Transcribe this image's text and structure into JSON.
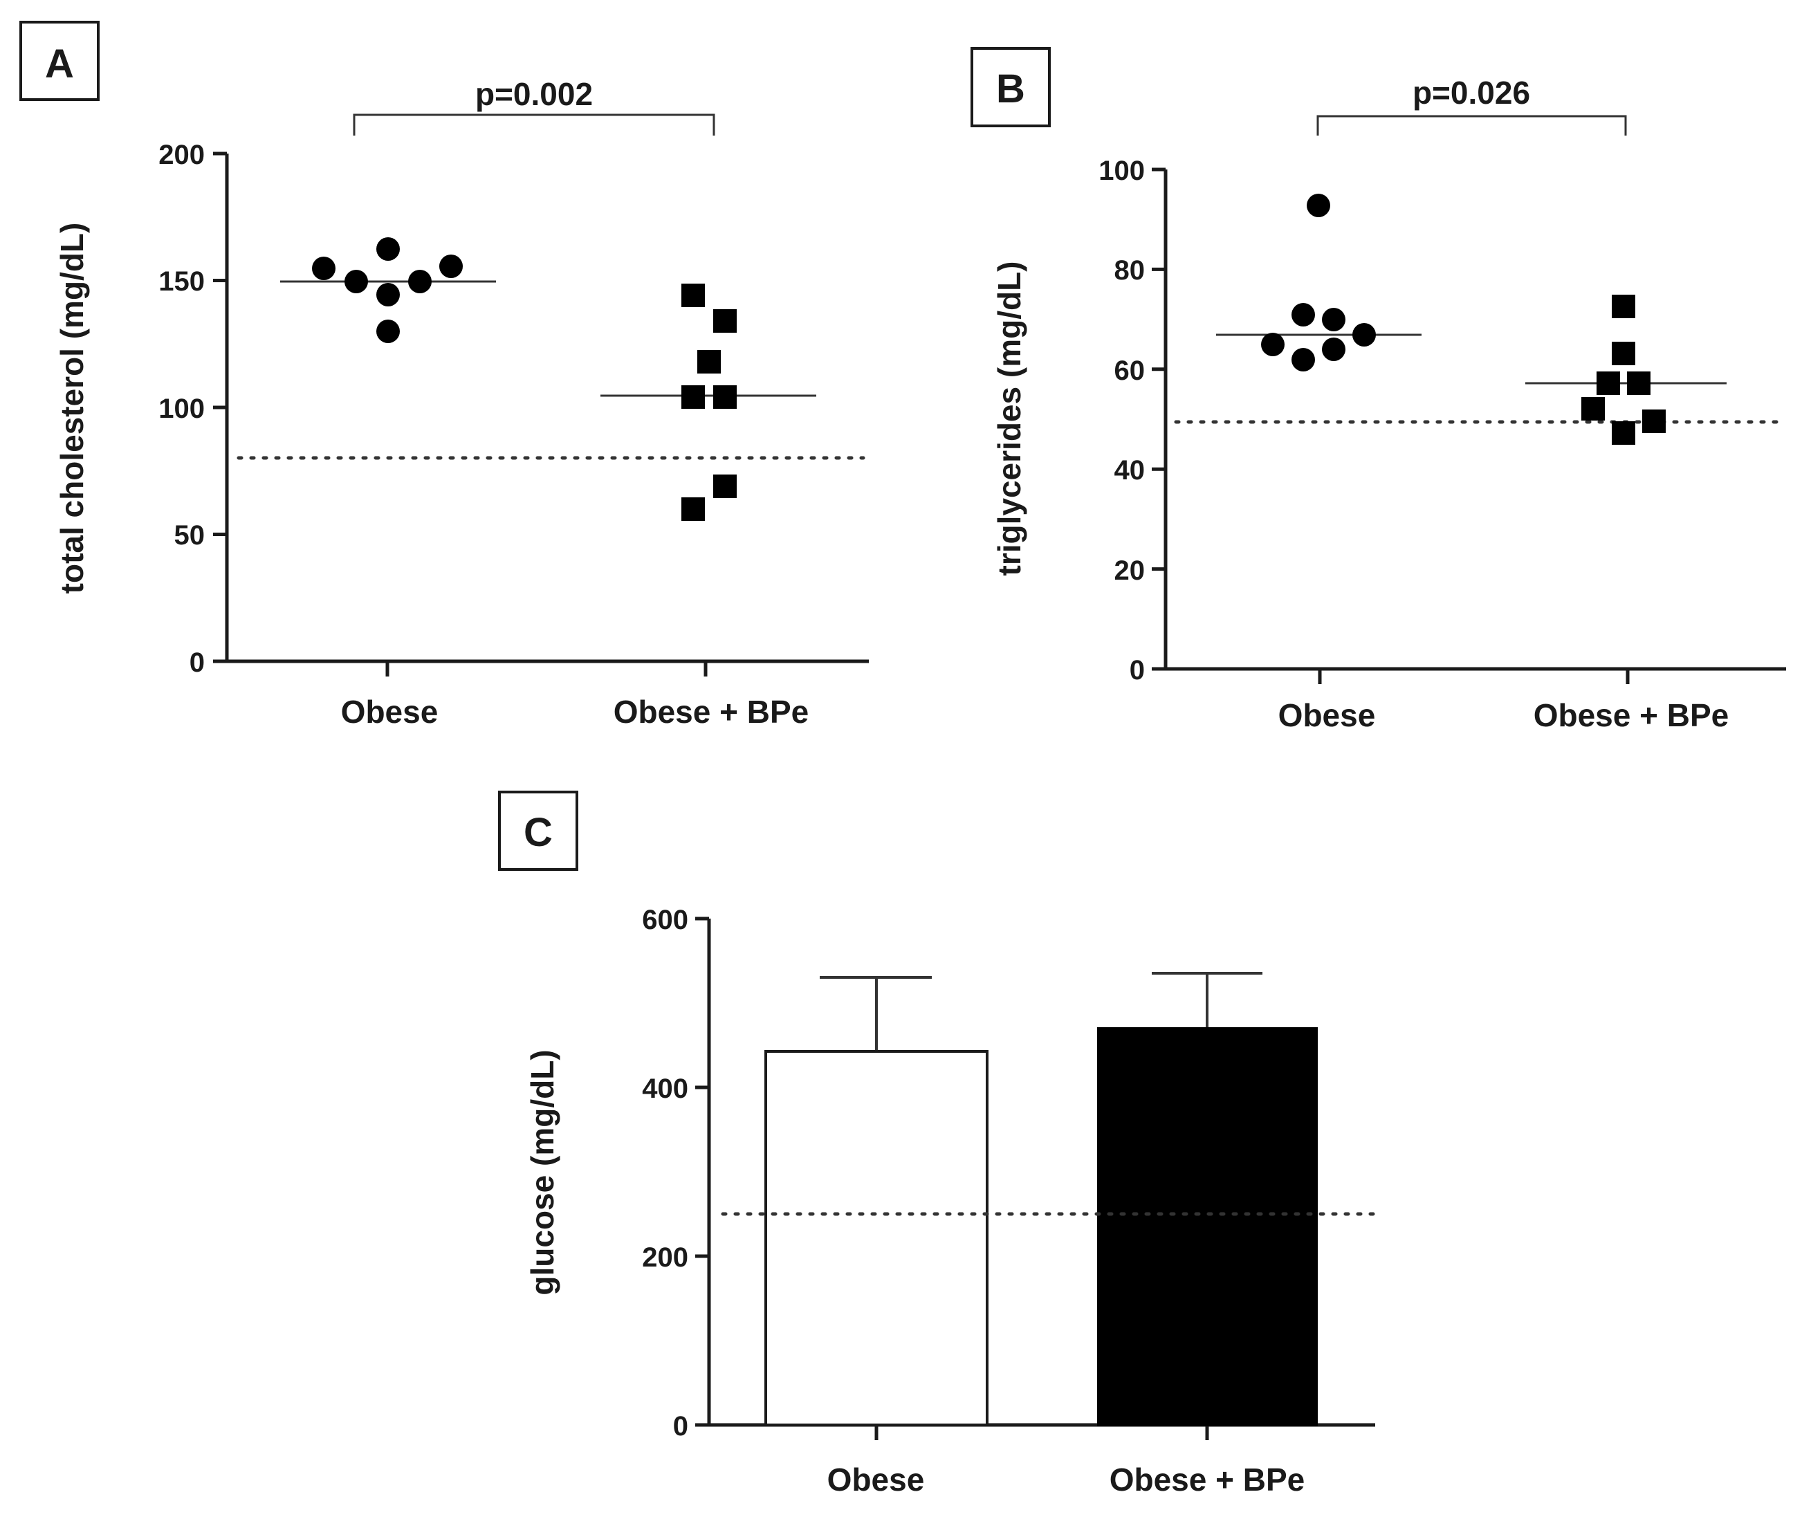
{
  "chart_data": [
    {
      "panel": "A",
      "type": "scatter",
      "ylabel": "total cholesterol (mg/dL)",
      "categories": [
        "Obese",
        "Obese + BPe"
      ],
      "ylim": [
        0,
        200
      ],
      "yticks": [
        0,
        50,
        100,
        150,
        200
      ],
      "reference_line": 80,
      "significance": "p=0.002",
      "series": [
        {
          "group": "Obese",
          "marker": "circle",
          "points": [
            155,
            150,
            145,
            163,
            150,
            156,
            130
          ],
          "median": 150
        },
        {
          "group": "Obese + BPe",
          "marker": "square",
          "points": [
            145,
            135,
            119,
            105,
            105,
            69,
            60
          ],
          "median": 105
        }
      ]
    },
    {
      "panel": "B",
      "type": "scatter",
      "ylabel": "triglycerides (mg/dL)",
      "categories": [
        "Obese",
        "Obese + BPe"
      ],
      "ylim": [
        0,
        100
      ],
      "yticks": [
        0,
        20,
        40,
        60,
        80,
        100
      ],
      "reference_line": 49.5,
      "significance": "p=0.026",
      "series": [
        {
          "group": "Obese",
          "marker": "circle",
          "points": [
            65,
            71,
            62,
            93,
            64,
            70,
            67
          ],
          "median": 67
        },
        {
          "group": "Obese + BPe",
          "marker": "square",
          "points": [
            52,
            57,
            73,
            63,
            47,
            57,
            50
          ],
          "median": 57
        }
      ]
    },
    {
      "panel": "C",
      "type": "bar",
      "ylabel": "glucose (mg/dL)",
      "categories": [
        "Obese",
        "Obese + BPe"
      ],
      "ylim": [
        0,
        600
      ],
      "yticks": [
        0,
        200,
        400,
        600
      ],
      "reference_line": 250,
      "values": [
        442,
        470
      ],
      "error": [
        88,
        65
      ],
      "bar_colors": [
        "#ffffff",
        "#000000"
      ]
    }
  ]
}
